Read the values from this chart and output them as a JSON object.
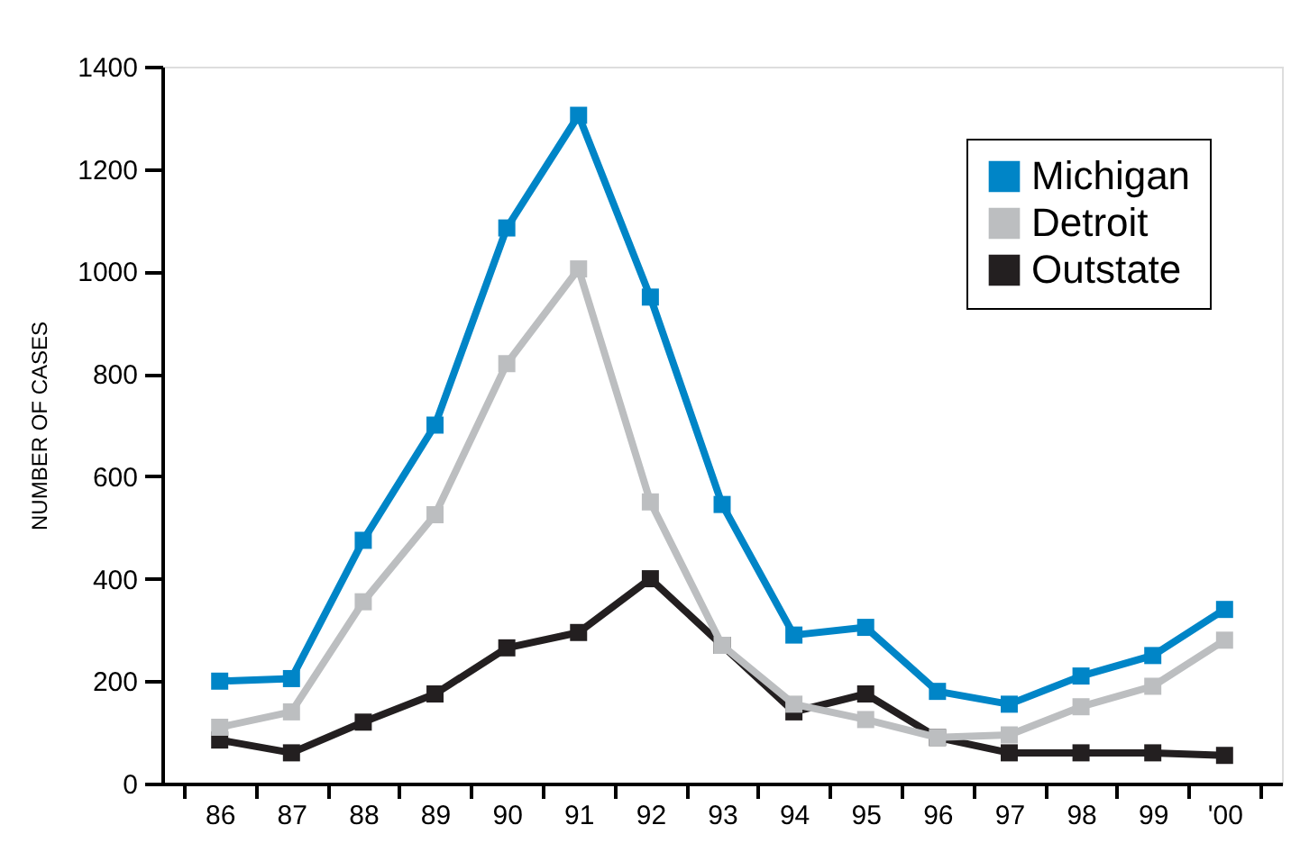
{
  "chart_data": {
    "type": "line",
    "ylabel": "NUMBER OF CASES",
    "categories": [
      "86",
      "87",
      "88",
      "89",
      "90",
      "91",
      "92",
      "93",
      "94",
      "95",
      "96",
      "97",
      "98",
      "99",
      "'00"
    ],
    "series": [
      {
        "name": "Michigan",
        "color": "#0085c7",
        "values": [
          200,
          205,
          475,
          700,
          1085,
          1305,
          950,
          545,
          290,
          305,
          180,
          155,
          210,
          250,
          340
        ]
      },
      {
        "name": "Detroit",
        "color": "#bcbec0",
        "values": [
          110,
          140,
          355,
          525,
          820,
          1005,
          550,
          270,
          155,
          125,
          90,
          95,
          150,
          190,
          280
        ]
      },
      {
        "name": "Outstate",
        "color": "#231f20",
        "values": [
          85,
          60,
          120,
          175,
          265,
          295,
          400,
          270,
          140,
          175,
          90,
          60,
          60,
          60,
          55
        ]
      }
    ],
    "ylim": [
      0,
      1400
    ],
    "yticks": [
      0,
      200,
      400,
      600,
      800,
      1000,
      1200,
      1400
    ],
    "grid": false,
    "legend": "top right",
    "marker": "square",
    "line_style": "solid"
  }
}
